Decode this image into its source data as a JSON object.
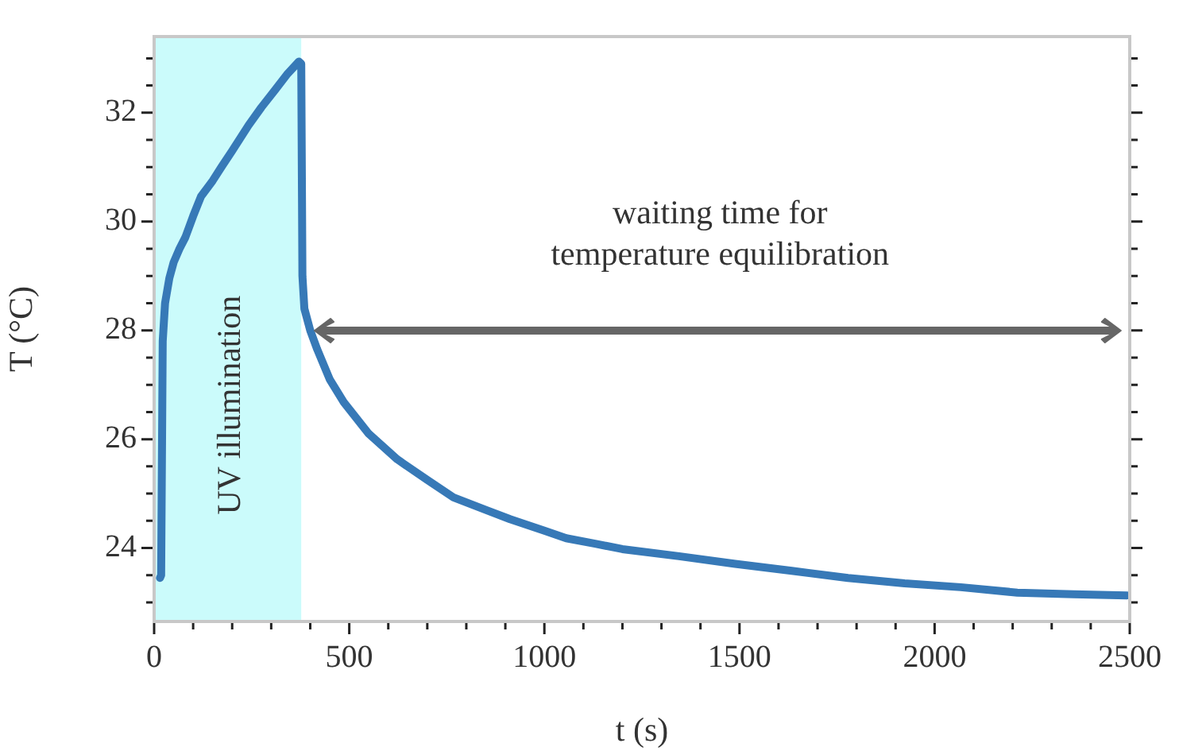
{
  "chart_data": {
    "type": "line",
    "xlabel": "t (s)",
    "ylabel": "T (°C)",
    "xlim": [
      0,
      2500
    ],
    "ylim": [
      22.65,
      33.4
    ],
    "xticks": [
      0,
      {
        "value": 100,
        "label": null
      },
      {
        "value": 200,
        "label": null
      },
      {
        "value": 300,
        "label": null
      },
      {
        "value": 400,
        "label": null
      },
      500,
      {
        "value": 600,
        "label": null
      },
      {
        "value": 700,
        "label": null
      },
      {
        "value": 800,
        "label": null
      },
      {
        "value": 900,
        "label": null
      },
      1000,
      {
        "value": 1100,
        "label": null
      },
      {
        "value": 1200,
        "label": null
      },
      {
        "value": 1300,
        "label": null
      },
      {
        "value": 1400,
        "label": null
      },
      1500,
      {
        "value": 1600,
        "label": null
      },
      {
        "value": 1700,
        "label": null
      },
      {
        "value": 1800,
        "label": null
      },
      {
        "value": 1900,
        "label": null
      },
      2000,
      {
        "value": 2100,
        "label": null
      },
      {
        "value": 2200,
        "label": null
      },
      {
        "value": 2300,
        "label": null
      },
      {
        "value": 2400,
        "label": null
      },
      2500
    ],
    "yticks": [
      {
        "value": 23,
        "label": null
      },
      {
        "value": 23.5,
        "label": null
      },
      24,
      {
        "value": 24.5,
        "label": null
      },
      {
        "value": 25,
        "label": null
      },
      {
        "value": 25.5,
        "label": null
      },
      26,
      {
        "value": 26.5,
        "label": null
      },
      {
        "value": 27,
        "label": null
      },
      {
        "value": 27.5,
        "label": null
      },
      28,
      {
        "value": 28.5,
        "label": null
      },
      {
        "value": 29,
        "label": null
      },
      {
        "value": 29.5,
        "label": null
      },
      30,
      {
        "value": 30.5,
        "label": null
      },
      {
        "value": 31,
        "label": null
      },
      {
        "value": 31.5,
        "label": null
      },
      32,
      {
        "value": 32.5,
        "label": null
      },
      {
        "value": 33,
        "label": null
      }
    ],
    "grid": false,
    "legend": false,
    "marker": "none",
    "line_style": "solid",
    "bands": [
      {
        "axis": "x",
        "from": 0,
        "to": 377,
        "label": "UV illumination",
        "color": "#cbfbfb"
      }
    ],
    "annotations": [
      "waiting time for\ntemperature equilibration"
    ],
    "series": [
      {
        "color": "#3779b7",
        "x": [
          15,
          18,
          22,
          28,
          39,
          50,
          65,
          80,
          100,
          120,
          150,
          174,
          200,
          242,
          275,
          310,
          340,
          371,
          377,
          380,
          385,
          400,
          418,
          450,
          486,
          550,
          623,
          700,
          767,
          850,
          912,
          1000,
          1056,
          1130,
          1200,
          1345,
          1489,
          1634,
          1778,
          1923,
          2067,
          2212,
          2356,
          2493
        ],
        "values": [
          23.45,
          23.5,
          27.8,
          28.5,
          28.96,
          29.25,
          29.5,
          29.71,
          30.1,
          30.46,
          30.75,
          31.02,
          31.3,
          31.77,
          32.1,
          32.42,
          32.7,
          32.94,
          32.9,
          29,
          28.4,
          28,
          27.65,
          27.1,
          26.68,
          26.1,
          25.63,
          25.25,
          24.93,
          24.7,
          24.53,
          24.32,
          24.18,
          24.08,
          23.98,
          23.85,
          23.71,
          23.58,
          23.45,
          23.35,
          23.28,
          23.18,
          23.15,
          23.13
        ]
      }
    ]
  }
}
